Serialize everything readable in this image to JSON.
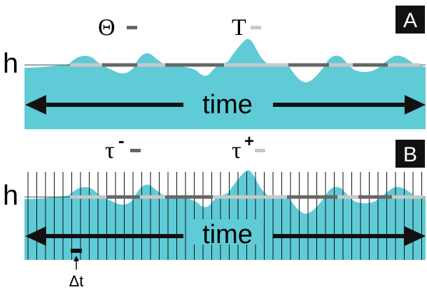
{
  "panel_a": {
    "letter": "A",
    "threshold_label": "h",
    "axis_label": "time",
    "legend": [
      {
        "symbol": "Θ",
        "swatch_color": "#666666"
      },
      {
        "symbol": "T",
        "swatch_color": "#c8c8c8"
      }
    ]
  },
  "panel_b": {
    "letter": "B",
    "threshold_label": "h",
    "axis_label": "time",
    "step_label": "Δt",
    "legend": [
      {
        "symbol": "τ",
        "superscript": "-",
        "swatch_color": "#666666"
      },
      {
        "symbol": "τ",
        "superscript": "+",
        "swatch_color": "#c8c8c8"
      }
    ]
  },
  "colors": {
    "fill": "#5ecbd6",
    "dark_segment": "#666666",
    "light_segment": "#c8c8c8",
    "arrow": "#111111",
    "badge": "#111111"
  }
}
